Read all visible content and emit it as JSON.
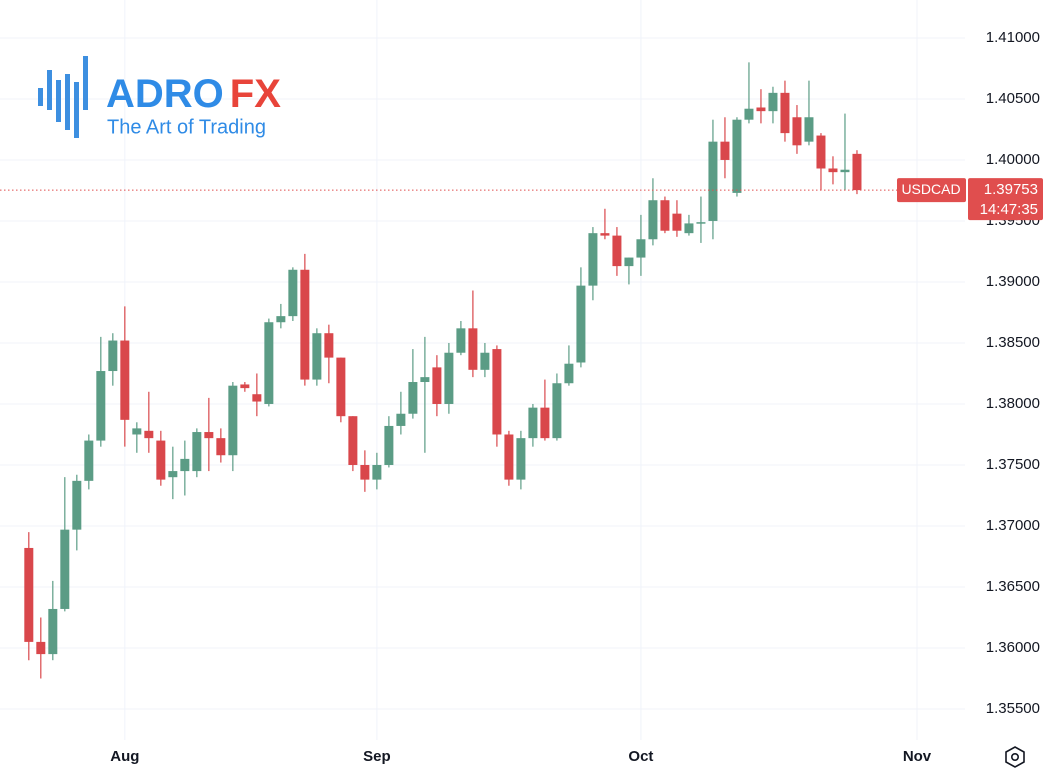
{
  "logo": {
    "brand_a": "ADRO",
    "brand_b": "FX",
    "tagline": "The Art of Trading"
  },
  "chart_data": {
    "type": "candlestick",
    "series": [
      {
        "name": "USDCAD",
        "up_color": "#5b9c85",
        "down_color": "#d9474b",
        "open": [
          1.3682,
          1.3605,
          1.3595,
          1.3632,
          1.3697,
          1.3737,
          1.377,
          1.3827,
          1.3852,
          1.3775,
          1.3778,
          1.377,
          1.374,
          1.3745,
          1.3745,
          1.3777,
          1.3772,
          1.3758,
          1.3816,
          1.3808,
          1.38,
          1.3867,
          1.3872,
          1.391,
          1.382,
          1.3858,
          1.3838,
          1.379,
          1.375,
          1.3738,
          1.375,
          1.3782,
          1.3792,
          1.3818,
          1.383,
          1.38,
          1.3842,
          1.3862,
          1.3828,
          1.3845,
          1.3775,
          1.3738,
          1.3772,
          1.3797,
          1.3772,
          1.3817,
          1.3834,
          1.3897,
          1.394,
          1.3938,
          1.3913,
          1.392,
          1.3935,
          1.3967,
          1.3956,
          1.394,
          1.3948,
          1.395,
          1.4015,
          1.3973,
          1.4033,
          1.4043,
          1.404,
          1.4055,
          1.4035,
          1.4015,
          1.402,
          1.3993,
          1.399,
          1.4005
        ],
        "high": [
          1.3695,
          1.3625,
          1.3655,
          1.374,
          1.3742,
          1.3775,
          1.3855,
          1.3858,
          1.388,
          1.3785,
          1.381,
          1.3778,
          1.3765,
          1.377,
          1.378,
          1.3805,
          1.378,
          1.3818,
          1.3818,
          1.3825,
          1.387,
          1.3882,
          1.3912,
          1.3923,
          1.3862,
          1.3865,
          1.3838,
          1.379,
          1.3762,
          1.376,
          1.379,
          1.381,
          1.3845,
          1.3855,
          1.384,
          1.385,
          1.3868,
          1.3893,
          1.385,
          1.3848,
          1.3778,
          1.3778,
          1.38,
          1.382,
          1.3825,
          1.3848,
          1.3912,
          1.3945,
          1.396,
          1.3945,
          1.392,
          1.3955,
          1.3985,
          1.397,
          1.3967,
          1.3955,
          1.397,
          1.4033,
          1.4035,
          1.4035,
          1.408,
          1.4058,
          1.406,
          1.4065,
          1.4045,
          1.4065,
          1.4022,
          1.4003,
          1.4038,
          1.4008
        ],
        "low": [
          1.359,
          1.3575,
          1.359,
          1.363,
          1.368,
          1.373,
          1.3765,
          1.3815,
          1.3765,
          1.376,
          1.376,
          1.3733,
          1.3722,
          1.3725,
          1.374,
          1.3745,
          1.3752,
          1.3745,
          1.381,
          1.379,
          1.3798,
          1.3862,
          1.3868,
          1.3815,
          1.3815,
          1.3817,
          1.3785,
          1.3745,
          1.3728,
          1.373,
          1.3748,
          1.3775,
          1.3788,
          1.376,
          1.379,
          1.3792,
          1.384,
          1.3822,
          1.3822,
          1.3765,
          1.3733,
          1.373,
          1.3765,
          1.377,
          1.377,
          1.3815,
          1.383,
          1.3885,
          1.3935,
          1.3905,
          1.3898,
          1.3905,
          1.393,
          1.394,
          1.3937,
          1.3938,
          1.3932,
          1.3935,
          1.3985,
          1.397,
          1.403,
          1.403,
          1.403,
          1.4015,
          1.4005,
          1.4012,
          1.3975,
          1.398,
          1.3975,
          1.3972
        ],
        "close": [
          1.3605,
          1.3595,
          1.3632,
          1.3697,
          1.3737,
          1.377,
          1.3827,
          1.3852,
          1.3787,
          1.378,
          1.3772,
          1.3738,
          1.3745,
          1.3755,
          1.3777,
          1.3772,
          1.3758,
          1.3815,
          1.3813,
          1.3802,
          1.3867,
          1.3872,
          1.391,
          1.382,
          1.3858,
          1.3838,
          1.379,
          1.375,
          1.3738,
          1.375,
          1.3782,
          1.3792,
          1.3818,
          1.3822,
          1.38,
          1.3842,
          1.3862,
          1.3828,
          1.3842,
          1.3775,
          1.3738,
          1.3772,
          1.3797,
          1.3772,
          1.3817,
          1.3833,
          1.3897,
          1.394,
          1.3938,
          1.3913,
          1.392,
          1.3935,
          1.3967,
          1.3942,
          1.3942,
          1.3948,
          1.3949,
          1.4015,
          1.4,
          1.4033,
          1.4042,
          1.404,
          1.4055,
          1.4022,
          1.4012,
          1.4035,
          1.3993,
          1.399,
          1.3992,
          1.39753
        ]
      }
    ],
    "xlim": [
      -2.4,
      78
    ],
    "xticks": [
      {
        "value": 8,
        "label": "Aug"
      },
      {
        "value": 29,
        "label": "Sep"
      },
      {
        "value": 51,
        "label": "Oct"
      },
      {
        "value": 74,
        "label": "Nov"
      }
    ],
    "ylim": [
      1.35246,
      1.41311
    ],
    "yticks": [
      {
        "value": 1.355,
        "label": "1.35500"
      },
      {
        "value": 1.36,
        "label": "1.36000"
      },
      {
        "value": 1.365,
        "label": "1.36500"
      },
      {
        "value": 1.37,
        "label": "1.37000"
      },
      {
        "value": 1.375,
        "label": "1.37500"
      },
      {
        "value": 1.38,
        "label": "1.38000"
      },
      {
        "value": 1.385,
        "label": "1.38500"
      },
      {
        "value": 1.39,
        "label": "1.39000"
      },
      {
        "value": 1.395,
        "label": "1.39500"
      },
      {
        "value": 1.4,
        "label": "1.40000"
      },
      {
        "value": 1.405,
        "label": "1.40500"
      },
      {
        "value": 1.41,
        "label": "1.41000"
      }
    ],
    "grid": true,
    "last_price": 1.39753,
    "last_price_color": "#e04e4e",
    "last_time": "14:47:35"
  }
}
